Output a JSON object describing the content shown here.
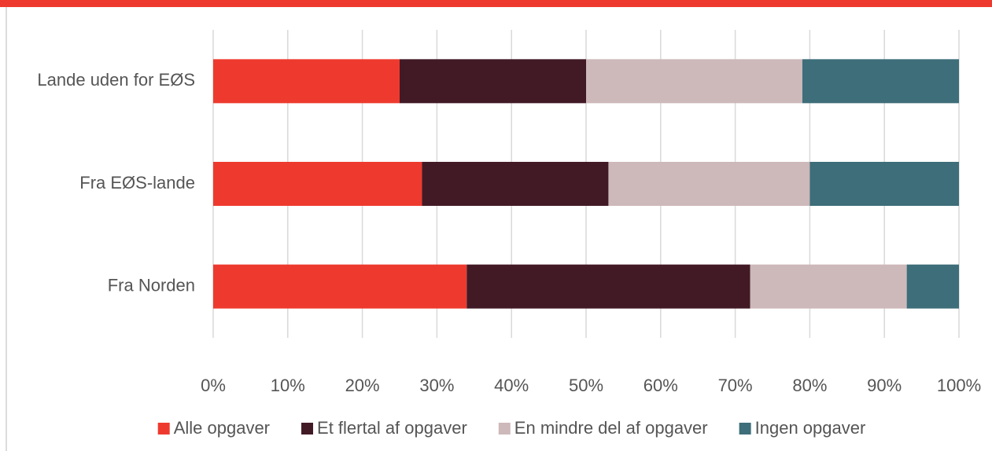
{
  "chart_data": {
    "type": "stacked-barh",
    "categories": [
      "Lande uden for EØS",
      "Fra EØS-lande",
      "Fra Norden"
    ],
    "series": [
      {
        "name": "Alle opgaver",
        "color": "#ee3a2e",
        "values": [
          25,
          28,
          34
        ]
      },
      {
        "name": "Et flertal af opgaver",
        "color": "#421a26",
        "values": [
          25,
          25,
          38
        ]
      },
      {
        "name": "En mindre del af opgaver",
        "color": "#cdb8ba",
        "values": [
          29,
          27,
          21
        ]
      },
      {
        "name": "Ingen opgaver",
        "color": "#3d6e79",
        "values": [
          21,
          20,
          7
        ]
      }
    ],
    "xlim": [
      0,
      100
    ],
    "xticks": [
      {
        "value": 0,
        "label": "0%"
      },
      {
        "value": 10,
        "label": "10%"
      },
      {
        "value": 20,
        "label": "20%"
      },
      {
        "value": 30,
        "label": "30%"
      },
      {
        "value": 40,
        "label": "40%"
      },
      {
        "value": 50,
        "label": "50%"
      },
      {
        "value": 60,
        "label": "60%"
      },
      {
        "value": 70,
        "label": "70%"
      },
      {
        "value": 80,
        "label": "80%"
      },
      {
        "value": 90,
        "label": "90%"
      },
      {
        "value": 100,
        "label": "100%"
      }
    ],
    "grid": true,
    "legend": "bottom"
  }
}
